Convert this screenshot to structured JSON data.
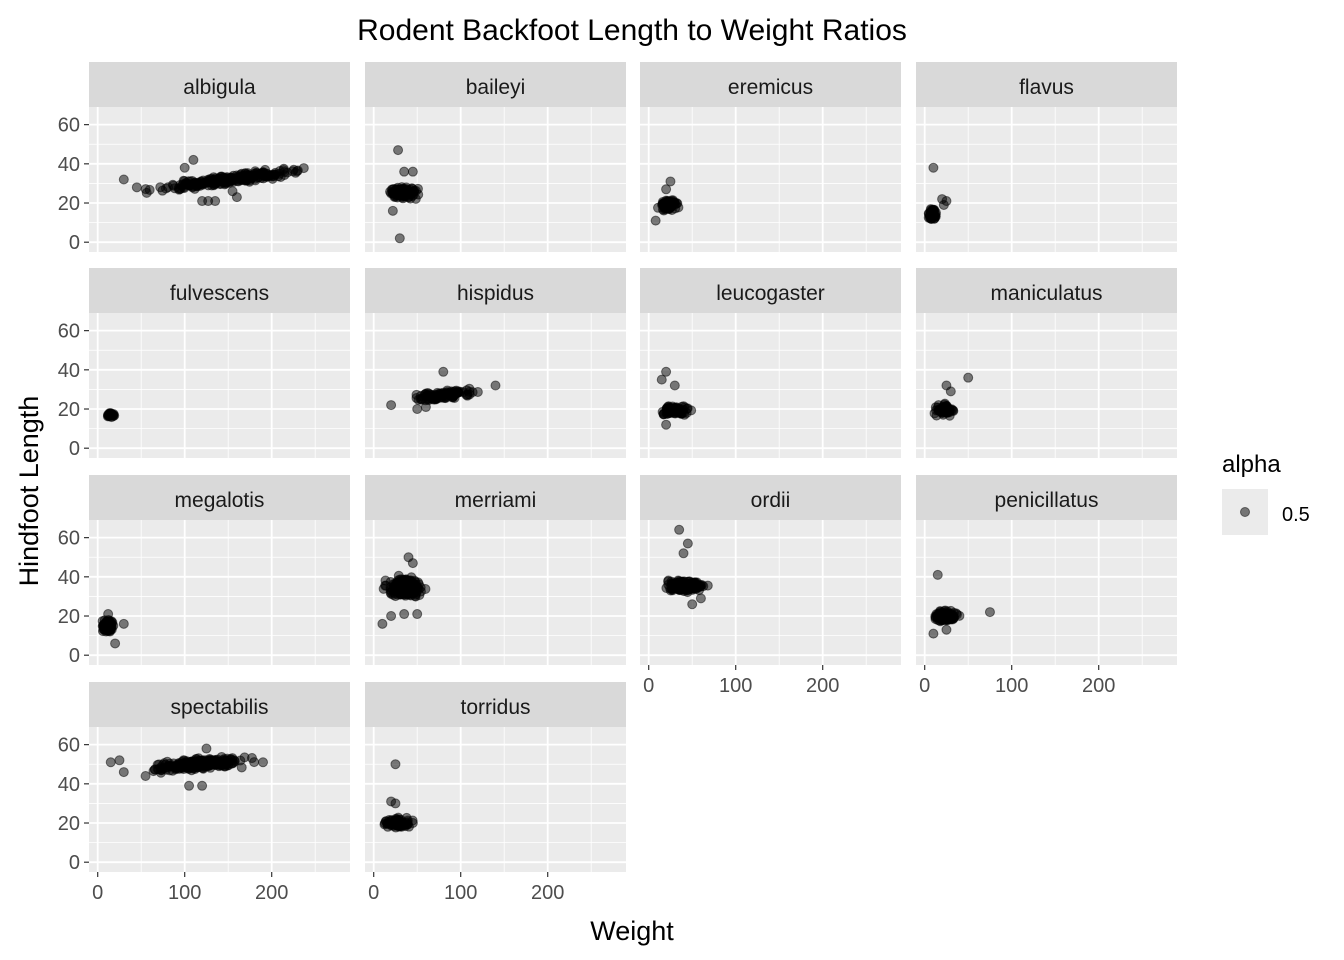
{
  "chart_data": {
    "type": "scatter",
    "title": "Rodent Backfoot Length to Weight Ratios",
    "xlabel": "Weight",
    "ylabel": "Hindfoot Length",
    "xlim": [
      -10,
      290
    ],
    "ylim": [
      -5,
      69
    ],
    "x_ticks": [
      0,
      100,
      200
    ],
    "y_ticks": [
      0,
      20,
      40,
      60
    ],
    "x_tick_labels": [
      "0",
      "100",
      "200"
    ],
    "y_tick_labels": [
      "0",
      "20",
      "40",
      "60"
    ],
    "facet_columns": 4,
    "grid": true,
    "legend": {
      "title": "alpha",
      "label": "0.5",
      "position": "right"
    },
    "colors": {
      "point": "#000000",
      "panel_bg": "#EBEBEB",
      "strip_bg": "#D9D9D9",
      "grid": "#FFFFFF"
    },
    "panels": [
      {
        "name": "albigula",
        "clusters": [
          {
            "x": [
              25,
              280
            ],
            "y": [
              27,
              37
            ],
            "n": 260,
            "trend": 0.06
          }
        ],
        "points": [
          [
            110,
            42
          ],
          [
            100,
            38
          ],
          [
            120,
            21
          ],
          [
            127,
            21
          ],
          [
            135,
            21
          ],
          [
            160,
            23
          ],
          [
            155,
            26
          ],
          [
            30,
            32
          ],
          [
            45,
            28
          ]
        ]
      },
      {
        "name": "baileyi",
        "clusters": [
          {
            "x": [
              8,
              58
            ],
            "y": [
              18,
              32
            ],
            "n": 110
          }
        ],
        "points": [
          [
            28,
            47
          ],
          [
            30,
            2
          ],
          [
            35,
            36
          ],
          [
            45,
            36
          ],
          [
            22,
            16
          ]
        ]
      },
      {
        "name": "eremicus",
        "clusters": [
          {
            "x": [
              5,
              40
            ],
            "y": [
              13,
              25
            ],
            "n": 70
          }
        ],
        "points": [
          [
            25,
            31
          ],
          [
            8,
            11
          ],
          [
            20,
            27
          ]
        ]
      },
      {
        "name": "flavus",
        "clusters": [
          {
            "x": [
              3,
              15
            ],
            "y": [
              7,
              22
            ],
            "n": 55
          }
        ],
        "points": [
          [
            10,
            38
          ],
          [
            20,
            22
          ],
          [
            25,
            21
          ],
          [
            22,
            19
          ]
        ]
      },
      {
        "name": "fulvescens",
        "clusters": [
          {
            "x": [
              8,
              22
            ],
            "y": [
              14,
              20
            ],
            "n": 25
          }
        ],
        "points": []
      },
      {
        "name": "hispidus",
        "clusters": [
          {
            "x": [
              25,
              140
            ],
            "y": [
              21,
              33
            ],
            "n": 100,
            "trend": 0.05
          }
        ],
        "points": [
          [
            80,
            39
          ],
          [
            20,
            22
          ],
          [
            60,
            21
          ],
          [
            50,
            20
          ],
          [
            140,
            32
          ]
        ]
      },
      {
        "name": "leucogaster",
        "clusters": [
          {
            "x": [
              5,
              55
            ],
            "y": [
              14,
              25
            ],
            "n": 90
          }
        ],
        "points": [
          [
            20,
            39
          ],
          [
            30,
            32
          ],
          [
            15,
            35
          ],
          [
            20,
            12
          ]
        ]
      },
      {
        "name": "maniculatus",
        "clusters": [
          {
            "x": [
              5,
              40
            ],
            "y": [
              14,
              25
            ],
            "n": 90
          }
        ],
        "points": [
          [
            50,
            36
          ],
          [
            25,
            32
          ],
          [
            30,
            29
          ]
        ]
      },
      {
        "name": "megalotis",
        "clusters": [
          {
            "x": [
              2,
              22
            ],
            "y": [
              8,
              22
            ],
            "n": 70
          }
        ],
        "points": [
          [
            20,
            6
          ],
          [
            30,
            16
          ],
          [
            12,
            21
          ]
        ]
      },
      {
        "name": "merriami",
        "clusters": [
          {
            "x": [
              5,
              65
            ],
            "y": [
              24,
              45
            ],
            "n": 220
          }
        ],
        "points": [
          [
            10,
            16
          ],
          [
            40,
            50
          ],
          [
            45,
            47
          ],
          [
            20,
            20
          ],
          [
            35,
            21
          ],
          [
            50,
            21
          ]
        ]
      },
      {
        "name": "ordii",
        "clusters": [
          {
            "x": [
              8,
              75
            ],
            "y": [
              29,
              42
            ],
            "n": 200
          }
        ],
        "points": [
          [
            35,
            64
          ],
          [
            45,
            57
          ],
          [
            40,
            52
          ],
          [
            50,
            26
          ],
          [
            60,
            29
          ]
        ]
      },
      {
        "name": "penicillatus",
        "clusters": [
          {
            "x": [
              2,
              45
            ],
            "y": [
              14,
              26
            ],
            "n": 120
          }
        ],
        "points": [
          [
            15,
            41
          ],
          [
            75,
            22
          ],
          [
            10,
            11
          ],
          [
            25,
            13
          ]
        ]
      },
      {
        "name": "spectabilis",
        "clusters": [
          {
            "x": [
              40,
              190
            ],
            "y": [
              44,
              56
            ],
            "n": 260,
            "trend": 0.04
          }
        ],
        "points": [
          [
            15,
            51
          ],
          [
            25,
            52
          ],
          [
            30,
            46
          ],
          [
            190,
            51
          ],
          [
            125,
            58
          ],
          [
            105,
            39
          ],
          [
            120,
            39
          ],
          [
            55,
            44
          ]
        ]
      },
      {
        "name": "torridus",
        "clusters": [
          {
            "x": [
              5,
              50
            ],
            "y": [
              15,
              25
            ],
            "n": 85
          }
        ],
        "points": [
          [
            25,
            50
          ],
          [
            20,
            31
          ],
          [
            25,
            30
          ],
          [
            45,
            20
          ]
        ]
      }
    ]
  }
}
